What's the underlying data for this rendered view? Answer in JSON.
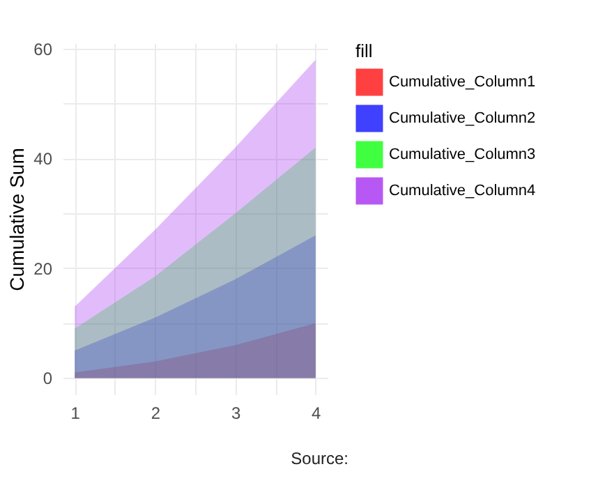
{
  "chart_data": {
    "type": "area",
    "ylabel": "Cumulative Sum",
    "legend_title": "fill",
    "legend": "right",
    "grid": true,
    "x": [
      1,
      2,
      3,
      4
    ],
    "xlim": [
      0.85,
      4.15
    ],
    "xticks": [
      1,
      {
        "value": 1.5,
        "label": null
      },
      2,
      {
        "value": 2.5,
        "label": null
      },
      3,
      {
        "value": 3.5,
        "label": null
      },
      4
    ],
    "ylim": [
      -3,
      61
    ],
    "yticks": [
      0,
      {
        "value": 10,
        "label": null
      },
      20,
      {
        "value": 30,
        "label": null
      },
      40,
      {
        "value": 50,
        "label": null
      },
      60
    ],
    "series": [
      {
        "name": "Cumulative_Column1",
        "color": "#ff0000",
        "values": [
          1,
          3,
          6,
          10
        ]
      },
      {
        "name": "Cumulative_Column2",
        "color": "#0000ff",
        "values": [
          5,
          11,
          18,
          26
        ]
      },
      {
        "name": "Cumulative_Column3",
        "color": "#00ff00",
        "values": [
          9,
          18.5,
          30,
          42
        ]
      },
      {
        "name": "Cumulative_Column4",
        "color": "#a020f0",
        "values": [
          13,
          27,
          42,
          58
        ]
      }
    ],
    "annotations": [
      "Source:"
    ]
  }
}
